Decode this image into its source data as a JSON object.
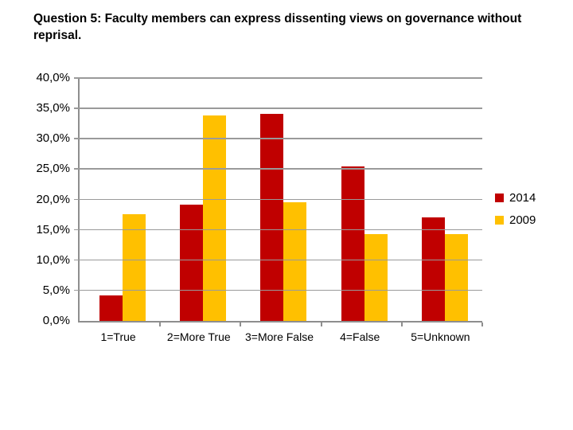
{
  "title": "Question 5: Faculty members can express dissenting views on governance without reprisal.",
  "chart_data": {
    "type": "bar",
    "categories": [
      "1=True",
      "2=More True",
      "3=More False",
      "4=False",
      "5=Unknown"
    ],
    "series": [
      {
        "name": "2014",
        "color": "#C00000",
        "values": [
          4.2,
          19.2,
          34.1,
          25.4,
          17.0
        ]
      },
      {
        "name": "2009",
        "color": "#FFC000",
        "values": [
          17.6,
          33.9,
          19.6,
          14.3,
          14.3
        ]
      }
    ],
    "xlabel": "",
    "ylabel": "",
    "ylim": [
      0,
      40
    ],
    "ytick_step": 5,
    "ytick_labels": [
      "0,0%",
      "5,0%",
      "10,0%",
      "15,0%",
      "20,0%",
      "25,0%",
      "30,0%",
      "35,0%",
      "40,0%"
    ],
    "grid": true,
    "gridline_color": "#9a9a9a",
    "axis_color": "#8e8e8e",
    "legend_position": "right"
  }
}
